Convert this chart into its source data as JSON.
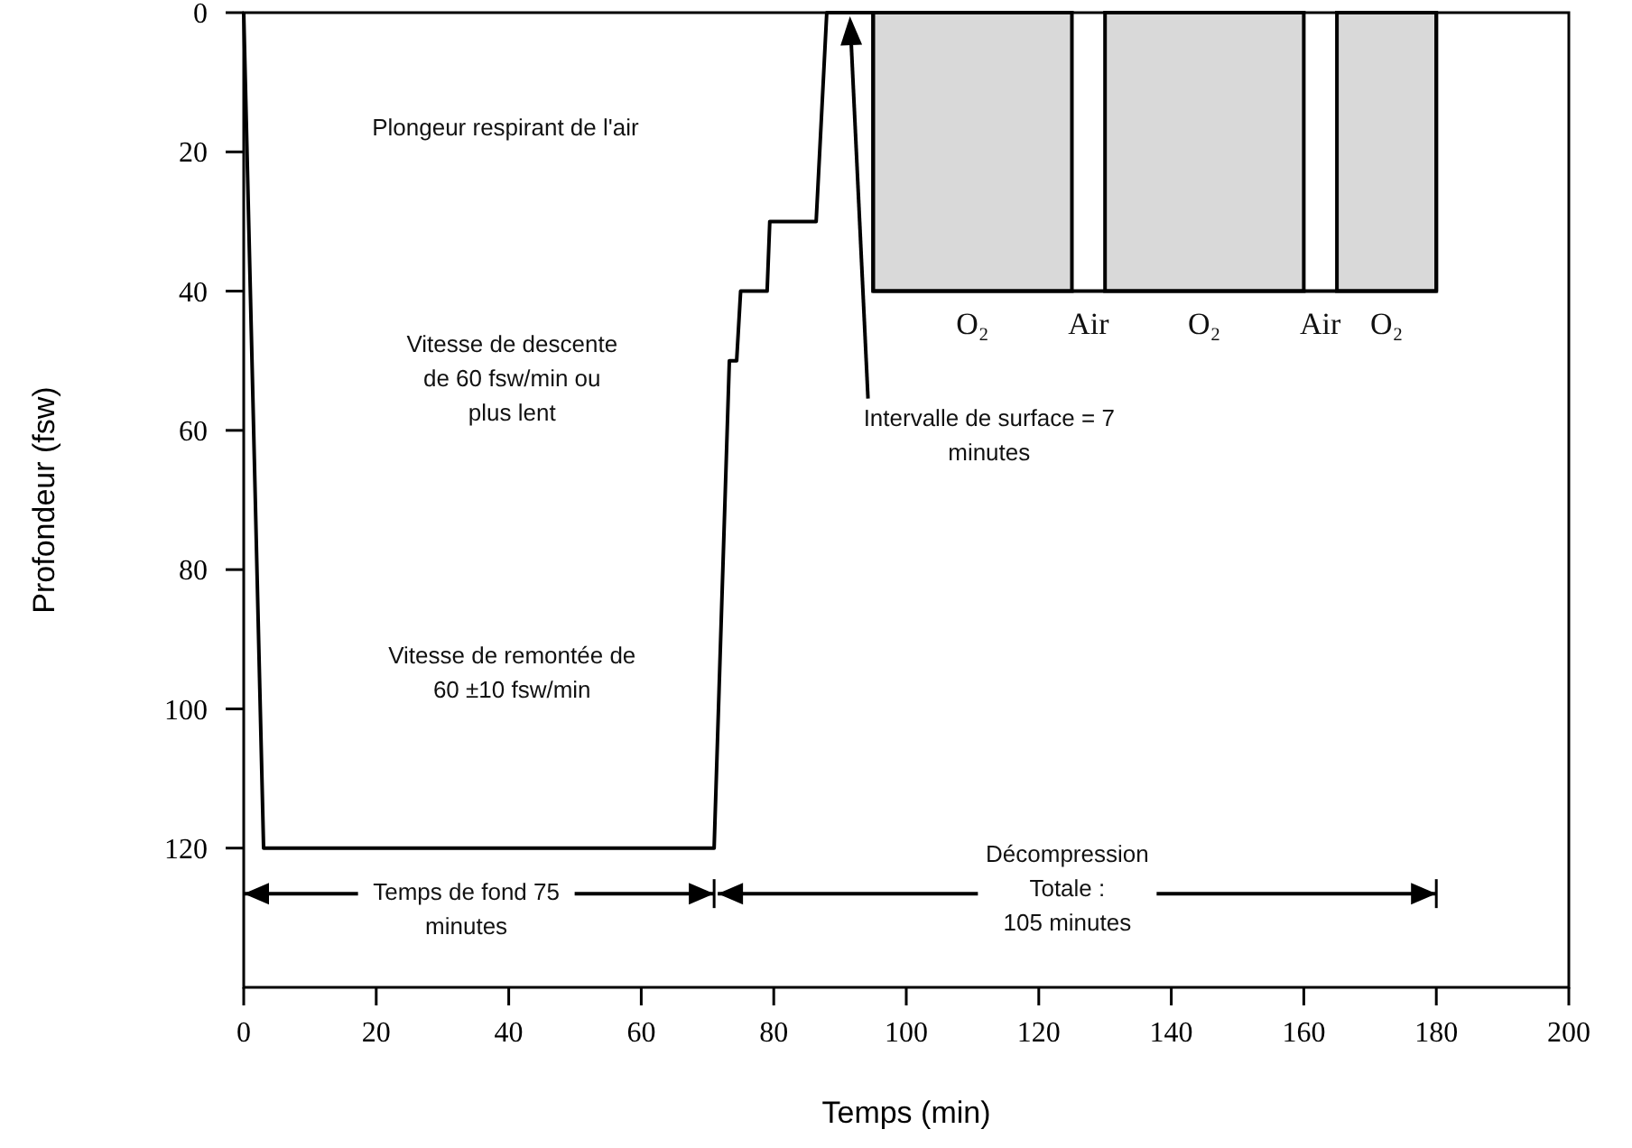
{
  "chart_data": {
    "type": "line",
    "xlabel": "Temps (min)",
    "ylabel": "Profondeur (fsw)",
    "xlim": [
      0,
      200
    ],
    "xticks": [
      0,
      20,
      40,
      60,
      80,
      100,
      120,
      140,
      160,
      180,
      200
    ],
    "ylim": [
      140,
      0
    ],
    "yticks": [
      0,
      20,
      40,
      60,
      80,
      100,
      120
    ],
    "grid": false,
    "series": [
      {
        "type": "area",
        "color": "#d9d9d9",
        "x": [
          95,
          125,
          127.5,
          130,
          160,
          162.5,
          165,
          180
        ],
        "values": [
          40,
          40,
          null,
          40,
          40,
          null,
          40,
          40
        ]
      },
      {
        "color": "#000000",
        "x": [
          0,
          3,
          71,
          73.3,
          74.4,
          75,
          79,
          79.4,
          86.4,
          88,
          95,
          95,
          180,
          180
        ],
        "values": [
          0,
          120,
          120,
          50,
          50,
          40,
          40,
          30,
          30,
          0,
          0,
          40,
          40,
          0
        ]
      }
    ],
    "annotations": [
      "Plongeur respirant de l'air",
      "Vitesse de descente\nde 60 fsw/min ou\nplus lent",
      "Vitesse de remontée de\n60 ±10 fsw/min",
      "Intervalle de surface = 7\nminutes",
      "Temps de fond 75\nminutes",
      "Décompression\nTotale :\n105 minutes",
      "O₂",
      "Air",
      "O₂",
      "Air",
      "O₂"
    ]
  }
}
